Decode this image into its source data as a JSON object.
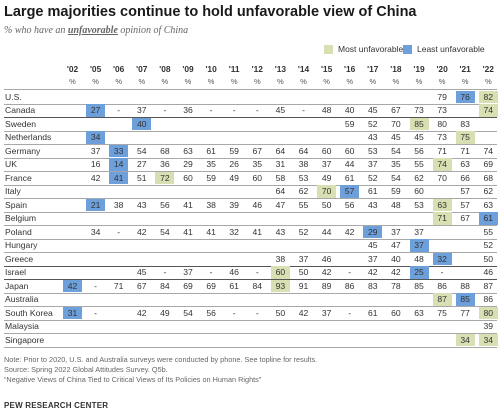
{
  "title": "Large majorities continue to hold unfavorable view of China",
  "subtitle": {
    "before": "% who have an ",
    "emphasis": "unfavorable",
    "after": " opinion of China"
  },
  "legend": {
    "most": "Most unfavorable",
    "least": "Least unfavorable"
  },
  "colors": {
    "most": "#d8dfb2",
    "least": "#6d9fdb"
  },
  "notes": [
    "Note: Prior to 2020, U.S. and Australia surveys were conducted by phone. See topline for results.",
    "Source: Spring 2022 Global Attitudes Survey. Q5b.",
    "“Negative Views of China Tied to Critical Views of Its Policies on Human Rights”"
  ],
  "source_label": "PEW RESEARCH CENTER",
  "chart_data": {
    "type": "table",
    "title": "Large majorities continue to hold unfavorable view of China",
    "subtitle": "% who have an unfavorable opinion of China",
    "columns": [
      "'02",
      "'05",
      "'06",
      "'07",
      "'08",
      "'09",
      "'10",
      "'11",
      "'12",
      "'13",
      "'14",
      "'15",
      "'16",
      "'17",
      "'18",
      "'19",
      "'20",
      "'21",
      "'22"
    ],
    "unit_row": [
      "%",
      "%",
      "%",
      "%",
      "%",
      "%",
      "%",
      "%",
      "%",
      "%",
      "%",
      "%",
      "%",
      "%",
      "%",
      "%",
      "%",
      "%",
      "%"
    ],
    "rows": [
      {
        "country": "U.S.",
        "values": [
          "",
          "",
          "",
          "",
          "",
          "",
          "",
          "",
          "",
          "",
          "",
          "",
          "",
          "",
          "",
          "",
          "79",
          "76",
          "82"
        ],
        "most": [
          18
        ],
        "least": [
          17
        ],
        "line_after": false
      },
      {
        "country": "Canada",
        "values": [
          "",
          "27",
          "-",
          "37",
          "-",
          "36",
          "-",
          "-",
          "-",
          "45",
          "-",
          "48",
          "40",
          "45",
          "67",
          "73",
          "73",
          "",
          "74"
        ],
        "most": [
          18
        ],
        "least": [
          1
        ],
        "line_after": true
      },
      {
        "country": "Sweden",
        "values": [
          "",
          "",
          "",
          "40",
          "",
          "",
          "",
          "",
          "",
          "",
          "",
          "",
          "59",
          "52",
          "70",
          "85",
          "80",
          "83",
          ""
        ],
        "most": [
          15
        ],
        "least": [
          3
        ],
        "line_after": false
      },
      {
        "country": "Netherlands",
        "values": [
          "",
          "34",
          "",
          "",
          "",
          "",
          "",
          "",
          "",
          "",
          "",
          "",
          "",
          "43",
          "45",
          "45",
          "73",
          "75",
          ""
        ],
        "most": [
          17
        ],
        "least": [
          1
        ],
        "line_after": false
      },
      {
        "country": "Germany",
        "values": [
          "",
          "37",
          "33",
          "54",
          "68",
          "63",
          "61",
          "59",
          "67",
          "64",
          "64",
          "60",
          "60",
          "53",
          "54",
          "56",
          "71",
          "71",
          "74"
        ],
        "most": [],
        "least": [
          2
        ],
        "line_after": false
      },
      {
        "country": "UK",
        "values": [
          "",
          "16",
          "14",
          "27",
          "36",
          "29",
          "35",
          "26",
          "35",
          "31",
          "38",
          "37",
          "44",
          "37",
          "35",
          "55",
          "74",
          "63",
          "69"
        ],
        "most": [
          16
        ],
        "least": [
          2
        ],
        "line_after": false
      },
      {
        "country": "France",
        "values": [
          "",
          "42",
          "41",
          "51",
          "72",
          "60",
          "59",
          "49",
          "60",
          "58",
          "53",
          "49",
          "61",
          "52",
          "54",
          "62",
          "70",
          "66",
          "68"
        ],
        "most": [
          4
        ],
        "least": [
          2
        ],
        "line_after": false
      },
      {
        "country": "Italy",
        "values": [
          "",
          "",
          "",
          "",
          "",
          "",
          "",
          "",
          "",
          "64",
          "62",
          "70",
          "57",
          "61",
          "59",
          "60",
          "",
          "57",
          "62"
        ],
        "most": [
          11
        ],
        "least": [
          12
        ],
        "line_after": false
      },
      {
        "country": "Spain",
        "values": [
          "",
          "21",
          "38",
          "43",
          "56",
          "41",
          "38",
          "39",
          "46",
          "47",
          "55",
          "50",
          "56",
          "43",
          "48",
          "53",
          "63",
          "57",
          "63"
        ],
        "most": [
          16
        ],
        "least": [
          1
        ],
        "line_after": false
      },
      {
        "country": "Belgium",
        "values": [
          "",
          "",
          "",
          "",
          "",
          "",
          "",
          "",
          "",
          "",
          "",
          "",
          "",
          "",
          "",
          "",
          "71",
          "67",
          "61"
        ],
        "most": [
          16
        ],
        "least": [
          18
        ],
        "line_after": false
      },
      {
        "country": "Poland",
        "values": [
          "",
          "34",
          "-",
          "42",
          "54",
          "41",
          "41",
          "32",
          "41",
          "43",
          "52",
          "44",
          "42",
          "29",
          "37",
          "37",
          "",
          "",
          "55"
        ],
        "most": [],
        "least": [
          13
        ],
        "line_after": false
      },
      {
        "country": "Hungary",
        "values": [
          "",
          "",
          "",
          "",
          "",
          "",
          "",
          "",
          "",
          "",
          "",
          "",
          "",
          "45",
          "47",
          "37",
          "",
          "",
          "52"
        ],
        "most": [],
        "least": [
          15
        ],
        "line_after": false
      },
      {
        "country": "Greece",
        "values": [
          "",
          "",
          "",
          "",
          "",
          "",
          "",
          "",
          "",
          "38",
          "37",
          "46",
          "",
          "37",
          "40",
          "48",
          "32",
          "",
          "50"
        ],
        "most": [],
        "least": [
          16
        ],
        "line_after": true
      },
      {
        "country": "Israel",
        "values": [
          "",
          "",
          "",
          "45",
          "-",
          "37",
          "-",
          "46",
          "-",
          "60",
          "50",
          "42",
          "-",
          "42",
          "42",
          "25",
          "-",
          "",
          "46"
        ],
        "most": [
          9
        ],
        "least": [
          15
        ],
        "line_after": true
      },
      {
        "country": "Japan",
        "values": [
          "42",
          "-",
          "71",
          "67",
          "84",
          "69",
          "69",
          "61",
          "84",
          "93",
          "91",
          "89",
          "86",
          "83",
          "78",
          "85",
          "86",
          "88",
          "87"
        ],
        "most": [
          9
        ],
        "least": [
          0
        ],
        "line_after": false
      },
      {
        "country": "Australia",
        "values": [
          "",
          "",
          "",
          "",
          "",
          "",
          "",
          "",
          "",
          "",
          "",
          "",
          "",
          "",
          "",
          "",
          "87",
          "85",
          "86"
        ],
        "most": [
          16
        ],
        "least": [
          17
        ],
        "line_after": false
      },
      {
        "country": "South Korea",
        "values": [
          "31",
          "-",
          "",
          "42",
          "49",
          "54",
          "56",
          "-",
          "-",
          "50",
          "42",
          "37",
          "-",
          "61",
          "60",
          "63",
          "75",
          "77",
          "80"
        ],
        "most": [
          18
        ],
        "least": [
          0
        ],
        "line_after": false
      },
      {
        "country": "Malaysia",
        "values": [
          "",
          "",
          "",
          "",
          "",
          "",
          "",
          "",
          "",
          "",
          "",
          "",
          "",
          "",
          "",
          "",
          "",
          "",
          "39"
        ],
        "most": [],
        "least": [],
        "line_after": false
      },
      {
        "country": "Singapore",
        "values": [
          "",
          "",
          "",
          "",
          "",
          "",
          "",
          "",
          "",
          "",
          "",
          "",
          "",
          "",
          "",
          "",
          "",
          "34",
          "34"
        ],
        "most": [
          17,
          18
        ],
        "least": [],
        "line_after": false
      }
    ]
  }
}
